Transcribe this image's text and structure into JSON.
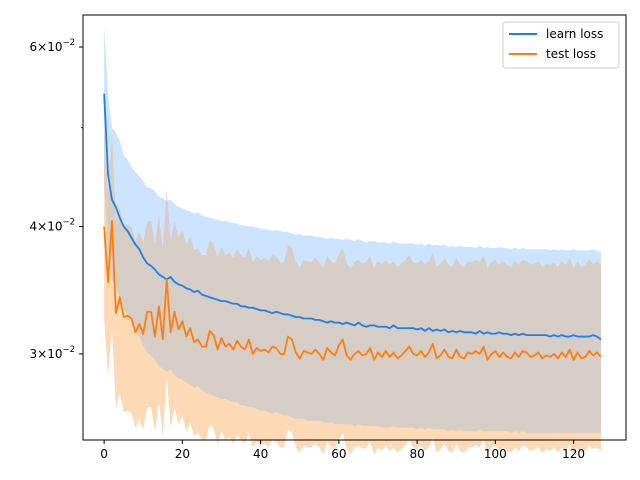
{
  "chart_data": {
    "type": "line",
    "title": "",
    "xlabel": "",
    "ylabel": "",
    "xlim": [
      -5.4,
      133.4
    ],
    "ylim": [
      0.0247,
      0.0645
    ],
    "yscale": "log",
    "grid": false,
    "legend_position": "top-right",
    "x_ticks": [
      0,
      20,
      40,
      60,
      80,
      100,
      120
    ],
    "y_ticks": [
      {
        "value": 0.03,
        "mantissa": "3",
        "base": "10",
        "exp": "−2"
      },
      {
        "value": 0.04,
        "mantissa": "4",
        "base": "10",
        "exp": "−2"
      },
      {
        "value": 0.06,
        "mantissa": "6",
        "base": "10",
        "exp": "−2"
      }
    ],
    "y_minor_ticks": [
      0.05
    ],
    "x": [
      0,
      1,
      2,
      3,
      4,
      5,
      6,
      7,
      8,
      9,
      10,
      11,
      12,
      13,
      14,
      15,
      16,
      17,
      18,
      19,
      20,
      21,
      22,
      23,
      24,
      25,
      26,
      27,
      28,
      29,
      30,
      31,
      32,
      33,
      34,
      35,
      36,
      37,
      38,
      39,
      40,
      41,
      42,
      43,
      44,
      45,
      46,
      47,
      48,
      49,
      50,
      51,
      52,
      53,
      54,
      55,
      56,
      57,
      58,
      59,
      60,
      61,
      62,
      63,
      64,
      65,
      66,
      67,
      68,
      69,
      70,
      71,
      72,
      73,
      74,
      75,
      76,
      77,
      78,
      79,
      80,
      81,
      82,
      83,
      84,
      85,
      86,
      87,
      88,
      89,
      90,
      91,
      92,
      93,
      94,
      95,
      96,
      97,
      98,
      99,
      100,
      101,
      102,
      103,
      104,
      105,
      106,
      107,
      108,
      109,
      110,
      111,
      112,
      113,
      114,
      115,
      116,
      117,
      118,
      119,
      120,
      121,
      122,
      123,
      124,
      125,
      126,
      127
    ],
    "series": [
      {
        "name": "learn loss",
        "color": "#1f7fe6",
        "band_color": "#cce4ff",
        "values": [
          0.054,
          0.045,
          0.0425,
          0.0418,
          0.0408,
          0.04,
          0.0396,
          0.039,
          0.0384,
          0.038,
          0.0373,
          0.0368,
          0.0366,
          0.0363,
          0.0359,
          0.0357,
          0.0355,
          0.0357,
          0.0353,
          0.0351,
          0.035,
          0.0348,
          0.0347,
          0.0345,
          0.0346,
          0.0343,
          0.0342,
          0.0341,
          0.034,
          0.0339,
          0.0338,
          0.0338,
          0.0337,
          0.0336,
          0.0336,
          0.0334,
          0.0334,
          0.0333,
          0.0333,
          0.0332,
          0.0331,
          0.0331,
          0.033,
          0.0329,
          0.033,
          0.0329,
          0.0328,
          0.0328,
          0.0327,
          0.0326,
          0.0326,
          0.0325,
          0.0325,
          0.0325,
          0.0324,
          0.0324,
          0.0323,
          0.0322,
          0.0323,
          0.0322,
          0.0322,
          0.0321,
          0.0322,
          0.0321,
          0.032,
          0.0322,
          0.032,
          0.0319,
          0.032,
          0.032,
          0.0319,
          0.0319,
          0.0319,
          0.0318,
          0.032,
          0.0318,
          0.0318,
          0.0318,
          0.0318,
          0.0318,
          0.0317,
          0.0318,
          0.0316,
          0.0318,
          0.0316,
          0.0317,
          0.0316,
          0.0317,
          0.0315,
          0.0316,
          0.0315,
          0.0316,
          0.0315,
          0.0315,
          0.0315,
          0.0314,
          0.0316,
          0.0314,
          0.0315,
          0.0314,
          0.0314,
          0.0315,
          0.0314,
          0.0314,
          0.0313,
          0.0314,
          0.0313,
          0.0314,
          0.0313,
          0.0313,
          0.0313,
          0.0313,
          0.0313,
          0.0313,
          0.0312,
          0.0313,
          0.0312,
          0.0313,
          0.0312,
          0.0312,
          0.0313,
          0.0312,
          0.0312,
          0.0312,
          0.0312,
          0.0313,
          0.0312,
          0.031
        ],
        "lower": [
          0.044,
          0.038,
          0.0355,
          0.0348,
          0.034,
          0.0333,
          0.0328,
          0.0322,
          0.0316,
          0.0312,
          0.0306,
          0.0301,
          0.0299,
          0.0296,
          0.0292,
          0.029,
          0.0288,
          0.029,
          0.0286,
          0.0284,
          0.0283,
          0.0281,
          0.028,
          0.0278,
          0.0279,
          0.0276,
          0.0275,
          0.0274,
          0.0273,
          0.0272,
          0.0271,
          0.0271,
          0.027,
          0.0269,
          0.0269,
          0.0267,
          0.0267,
          0.0266,
          0.0266,
          0.0265,
          0.0264,
          0.0264,
          0.0263,
          0.0262,
          0.0263,
          0.0262,
          0.0261,
          0.0261,
          0.026,
          0.0259,
          0.0259,
          0.0259,
          0.0258,
          0.0258,
          0.0258,
          0.0258,
          0.0257,
          0.0257,
          0.0257,
          0.0256,
          0.0256,
          0.0256,
          0.0256,
          0.0256,
          0.0255,
          0.0256,
          0.0255,
          0.0255,
          0.0255,
          0.0255,
          0.0255,
          0.0254,
          0.0254,
          0.0254,
          0.0255,
          0.0254,
          0.0254,
          0.0254,
          0.0254,
          0.0254,
          0.0253,
          0.0254,
          0.0253,
          0.0254,
          0.0253,
          0.0253,
          0.0253,
          0.0253,
          0.0252,
          0.0253,
          0.0252,
          0.0253,
          0.0252,
          0.0252,
          0.0252,
          0.0252,
          0.0253,
          0.0252,
          0.0252,
          0.0252,
          0.0252,
          0.0252,
          0.0252,
          0.0252,
          0.0251,
          0.0252,
          0.0251,
          0.0252,
          0.0251,
          0.0251,
          0.0251,
          0.0251,
          0.0251,
          0.0251,
          0.0251,
          0.0251,
          0.0251,
          0.0251,
          0.0251,
          0.0251,
          0.0251,
          0.0251,
          0.0251,
          0.0251,
          0.0251,
          0.0251,
          0.0251,
          0.0251
        ],
        "upper": [
          0.063,
          0.054,
          0.05,
          0.0495,
          0.0485,
          0.047,
          0.0465,
          0.0458,
          0.0452,
          0.0448,
          0.0443,
          0.0437,
          0.0436,
          0.0433,
          0.0428,
          0.0426,
          0.0424,
          0.0425,
          0.0421,
          0.0418,
          0.0417,
          0.0415,
          0.0414,
          0.0412,
          0.0413,
          0.041,
          0.0409,
          0.0408,
          0.0407,
          0.0406,
          0.0405,
          0.0405,
          0.0404,
          0.0403,
          0.0403,
          0.0401,
          0.0401,
          0.04,
          0.04,
          0.0399,
          0.0398,
          0.0398,
          0.0397,
          0.0396,
          0.0397,
          0.0396,
          0.0395,
          0.0395,
          0.0394,
          0.0393,
          0.0393,
          0.0392,
          0.0392,
          0.0392,
          0.0391,
          0.0391,
          0.039,
          0.0389,
          0.039,
          0.0389,
          0.0389,
          0.0388,
          0.0389,
          0.0388,
          0.0387,
          0.0389,
          0.0387,
          0.0386,
          0.0387,
          0.0387,
          0.0386,
          0.0386,
          0.0386,
          0.0385,
          0.0387,
          0.0385,
          0.0385,
          0.0385,
          0.0385,
          0.0385,
          0.0384,
          0.0385,
          0.0383,
          0.0385,
          0.0383,
          0.0384,
          0.0383,
          0.0384,
          0.0382,
          0.0383,
          0.0382,
          0.0383,
          0.0382,
          0.0382,
          0.0382,
          0.0381,
          0.0383,
          0.0381,
          0.0382,
          0.0381,
          0.0381,
          0.0382,
          0.0381,
          0.0381,
          0.038,
          0.0381,
          0.038,
          0.0381,
          0.038,
          0.038,
          0.038,
          0.038,
          0.038,
          0.038,
          0.0379,
          0.038,
          0.0379,
          0.038,
          0.0379,
          0.0379,
          0.038,
          0.0379,
          0.0379,
          0.0379,
          0.0379,
          0.038,
          0.0379,
          0.0377
        ]
      },
      {
        "name": "test loss",
        "color": "#ff7f0e",
        "band_color": "#fdd9b5",
        "band_overlap_color": "#d6cdc7",
        "values": [
          0.04,
          0.0353,
          0.0405,
          0.0329,
          0.0341,
          0.0326,
          0.0327,
          0.0325,
          0.0315,
          0.0321,
          0.0314,
          0.033,
          0.033,
          0.0312,
          0.0334,
          0.031,
          0.0355,
          0.0315,
          0.033,
          0.0317,
          0.0323,
          0.0312,
          0.0318,
          0.0308,
          0.031,
          0.0305,
          0.0305,
          0.0316,
          0.0313,
          0.0303,
          0.0311,
          0.0305,
          0.0307,
          0.0303,
          0.0309,
          0.0305,
          0.0303,
          0.031,
          0.03,
          0.0304,
          0.0302,
          0.0303,
          0.0301,
          0.0305,
          0.0304,
          0.03,
          0.03,
          0.0312,
          0.031,
          0.0301,
          0.0297,
          0.0302,
          0.0301,
          0.03,
          0.0303,
          0.03,
          0.0296,
          0.0304,
          0.0301,
          0.0299,
          0.0306,
          0.031,
          0.0299,
          0.0296,
          0.03,
          0.0302,
          0.0299,
          0.03,
          0.0304,
          0.0296,
          0.0301,
          0.0298,
          0.0302,
          0.0298,
          0.0301,
          0.0297,
          0.0299,
          0.0302,
          0.0305,
          0.03,
          0.0299,
          0.0302,
          0.0298,
          0.0301,
          0.0307,
          0.0297,
          0.0299,
          0.0303,
          0.0298,
          0.0297,
          0.0303,
          0.0298,
          0.0297,
          0.0301,
          0.03,
          0.0302,
          0.03,
          0.0305,
          0.0296,
          0.03,
          0.0302,
          0.0298,
          0.0301,
          0.0298,
          0.0297,
          0.0301,
          0.0298,
          0.0302,
          0.0301,
          0.0298,
          0.0299,
          0.0301,
          0.0297,
          0.0299,
          0.0298,
          0.03,
          0.0297,
          0.0301,
          0.0298,
          0.0303,
          0.0296,
          0.0301,
          0.0297,
          0.0298,
          0.0302,
          0.0299,
          0.0301,
          0.0298
        ],
        "lower": [
          0.0325,
          0.0285,
          0.032,
          0.0265,
          0.0275,
          0.0263,
          0.0264,
          0.0262,
          0.0254,
          0.0259,
          0.0253,
          0.0266,
          0.0266,
          0.0252,
          0.0269,
          0.025,
          0.0285,
          0.0254,
          0.0266,
          0.0256,
          0.0261,
          0.0252,
          0.0257,
          0.0249,
          0.0251,
          0.0247,
          0.0247,
          0.0256,
          0.0253,
          0.0245,
          0.0252,
          0.0247,
          0.0249,
          0.0245,
          0.025,
          0.0247,
          0.0245,
          0.0251,
          0.0243,
          0.0246,
          0.0244,
          0.0245,
          0.0243,
          0.0247,
          0.0246,
          0.0243,
          0.0243,
          0.0253,
          0.0251,
          0.0243,
          0.024,
          0.0244,
          0.0243,
          0.0243,
          0.0245,
          0.0243,
          0.0239,
          0.0246,
          0.0243,
          0.0242,
          0.0247,
          0.0251,
          0.0242,
          0.0239,
          0.0243,
          0.0244,
          0.0242,
          0.0243,
          0.0246,
          0.0239,
          0.0243,
          0.0241,
          0.0244,
          0.0241,
          0.0243,
          0.024,
          0.0242,
          0.0244,
          0.0247,
          0.0243,
          0.0242,
          0.0244,
          0.0241,
          0.0243,
          0.0248,
          0.024,
          0.0242,
          0.0245,
          0.0241,
          0.024,
          0.0245,
          0.0241,
          0.024,
          0.0243,
          0.0243,
          0.0244,
          0.0243,
          0.0247,
          0.0239,
          0.0243,
          0.0244,
          0.0241,
          0.0243,
          0.0241,
          0.024,
          0.0243,
          0.0241,
          0.0244,
          0.0243,
          0.0241,
          0.0242,
          0.0243,
          0.024,
          0.0242,
          0.0241,
          0.0243,
          0.024,
          0.0243,
          0.0241,
          0.0245,
          0.0239,
          0.0243,
          0.024,
          0.0241,
          0.0244,
          0.0242,
          0.0243,
          0.0241
        ],
        "upper": [
          0.05,
          0.043,
          0.0495,
          0.0405,
          0.0418,
          0.04,
          0.0402,
          0.04,
          0.0387,
          0.0395,
          0.0386,
          0.0405,
          0.0405,
          0.0384,
          0.041,
          0.0381,
          0.0435,
          0.0387,
          0.0405,
          0.039,
          0.0397,
          0.0384,
          0.0391,
          0.0379,
          0.0381,
          0.0375,
          0.0375,
          0.0388,
          0.0385,
          0.0373,
          0.0382,
          0.0375,
          0.0377,
          0.0373,
          0.038,
          0.0375,
          0.0373,
          0.0381,
          0.0369,
          0.0374,
          0.0371,
          0.0373,
          0.037,
          0.0375,
          0.0374,
          0.0369,
          0.0369,
          0.0384,
          0.0381,
          0.037,
          0.0365,
          0.0371,
          0.037,
          0.0369,
          0.0373,
          0.0369,
          0.0364,
          0.0374,
          0.037,
          0.0368,
          0.0376,
          0.0381,
          0.0368,
          0.0364,
          0.0369,
          0.0371,
          0.0368,
          0.0369,
          0.0374,
          0.0364,
          0.037,
          0.0367,
          0.0371,
          0.0367,
          0.037,
          0.0365,
          0.0368,
          0.0371,
          0.0375,
          0.0369,
          0.0368,
          0.0371,
          0.0367,
          0.037,
          0.0377,
          0.0365,
          0.0368,
          0.0373,
          0.0367,
          0.0365,
          0.0373,
          0.0367,
          0.0365,
          0.037,
          0.0369,
          0.0371,
          0.0369,
          0.0375,
          0.0364,
          0.0369,
          0.0371,
          0.0367,
          0.037,
          0.0367,
          0.0365,
          0.037,
          0.0367,
          0.0371,
          0.037,
          0.0367,
          0.0368,
          0.037,
          0.0365,
          0.0368,
          0.0367,
          0.0369,
          0.0365,
          0.037,
          0.0367,
          0.0373,
          0.0364,
          0.037,
          0.0365,
          0.0367,
          0.0371,
          0.0368,
          0.037,
          0.0367
        ]
      }
    ]
  }
}
